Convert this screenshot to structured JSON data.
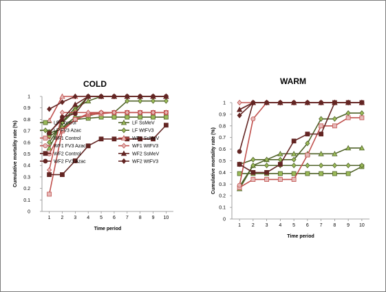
{
  "styles": {
    "LF": {
      "color": "#4f6228",
      "fill": "#9bbb59"
    },
    "WF1": {
      "color": "#c0504d",
      "fill": "#e6b9b8"
    },
    "WF2": {
      "color": "#632523",
      "fill": "#632523"
    }
  },
  "chart_data": [
    {
      "type": "line",
      "title": "COLD",
      "xlabel": "Time period",
      "ylabel": "Cumulative mortality rate (%)",
      "x": [
        1,
        2,
        3,
        4,
        5,
        6,
        7,
        8,
        9,
        10
      ],
      "ylim": [
        0,
        1
      ],
      "yticks": [
        0,
        0.1,
        0.2,
        0.3,
        0.4,
        0.5,
        0.6,
        0.7,
        0.8,
        0.9,
        1
      ],
      "ytick_labels": [
        "0",
        "0.1",
        "0.2",
        "0.3",
        "0.4",
        "0.5",
        "0.6",
        "0.7",
        "0.8",
        "0.9",
        "1"
      ],
      "legend": "inside-bottom-two-columns",
      "series": [
        {
          "name": "LF Control",
          "group": "LF",
          "marker": "square",
          "values": [
            0.68,
            0.72,
            0.8,
            0.81,
            0.82,
            0.82,
            0.82,
            0.82,
            0.82,
            0.82
          ]
        },
        {
          "name": "LF SsMeV",
          "group": "LF",
          "marker": "triangle",
          "values": [
            0.55,
            0.78,
            0.9,
            0.96,
            1.0,
            1.0,
            1.0,
            1.0,
            1.0,
            1.0
          ]
        },
        {
          "name": "LF FV3 Azac",
          "group": "LF",
          "marker": "diamond",
          "values": [
            0.6,
            0.77,
            0.88,
            1.0,
            1.0,
            1.0,
            1.0,
            1.0,
            1.0,
            1.0
          ]
        },
        {
          "name": "LF WtFV3",
          "group": "LF",
          "marker": "diamond",
          "values": [
            0.65,
            0.73,
            0.82,
            0.83,
            0.86,
            0.86,
            0.96,
            0.96,
            0.96,
            0.96
          ]
        },
        {
          "name": "WF1 Control",
          "group": "WF1",
          "marker": "square",
          "values": [
            0.15,
            0.7,
            0.8,
            0.84,
            0.85,
            0.86,
            0.86,
            0.86,
            0.86,
            0.86
          ]
        },
        {
          "name": "WF1 SsMeV",
          "group": "WF1",
          "marker": "triangle",
          "values": [
            0.79,
            1.0,
            1.0,
            1.0,
            1.0,
            1.0,
            1.0,
            1.0,
            1.0,
            1.0
          ]
        },
        {
          "name": "WF1 FV3 Azac",
          "group": "WF1",
          "marker": "circle",
          "values": [
            0.5,
            0.71,
            0.8,
            0.85,
            0.86,
            0.86,
            0.86,
            0.86,
            0.86,
            0.86
          ]
        },
        {
          "name": "WF1 WtFV3",
          "group": "WF1",
          "marker": "diamond",
          "values": [
            0.36,
            0.86,
            0.86,
            0.86,
            0.86,
            0.86,
            0.86,
            0.86,
            0.86,
            0.86
          ]
        },
        {
          "name": "WF2 Control",
          "group": "WF2",
          "marker": "square",
          "values": [
            0.32,
            0.32,
            0.44,
            0.57,
            0.63,
            0.63,
            0.63,
            0.63,
            0.63,
            0.75
          ]
        },
        {
          "name": "WF2 SsMeV",
          "group": "WF2",
          "marker": "triangle",
          "values": [
            0.69,
            0.8,
            0.93,
            1.0,
            1.0,
            1.0,
            1.0,
            1.0,
            1.0,
            1.0
          ]
        },
        {
          "name": "WF2 FV3 Azac",
          "group": "WF2",
          "marker": "circle",
          "values": [
            0.68,
            0.82,
            0.85,
            1.0,
            1.0,
            1.0,
            1.0,
            1.0,
            1.0,
            1.0
          ]
        },
        {
          "name": "WF2 WtFV3",
          "group": "WF2",
          "marker": "diamond",
          "values": [
            0.89,
            0.95,
            1.0,
            1.0,
            1.0,
            1.0,
            1.0,
            1.0,
            1.0,
            1.0
          ]
        }
      ]
    },
    {
      "type": "line",
      "title": "WARM",
      "xlabel": "Time period",
      "ylabel": "Cumulative mortality rate (%)",
      "x": [
        1,
        2,
        3,
        4,
        5,
        6,
        7,
        8,
        9,
        10
      ],
      "ylim": [
        0,
        1
      ],
      "yticks": [
        0,
        0.1,
        0.2,
        0.3,
        0.4,
        0.5,
        0.6,
        0.7,
        0.8,
        0.9,
        1
      ],
      "ytick_labels": [
        "0",
        "0.1",
        "0.2",
        "0.3",
        "0.4",
        "0.5",
        "0.6",
        "0.7",
        "0.8",
        "0.9",
        "1"
      ],
      "legend": "none",
      "series": [
        {
          "name": "LF Control",
          "group": "LF",
          "marker": "square",
          "values": [
            0.39,
            0.39,
            0.39,
            0.39,
            0.39,
            0.39,
            0.39,
            0.39,
            0.39,
            0.45
          ]
        },
        {
          "name": "LF SsMeV",
          "group": "LF",
          "marker": "triangle",
          "values": [
            0.26,
            0.46,
            0.51,
            0.56,
            0.56,
            0.56,
            0.56,
            0.56,
            0.61,
            0.61
          ]
        },
        {
          "name": "LF FV3 Azac",
          "group": "LF",
          "marker": "diamond",
          "values": [
            0.28,
            0.46,
            0.46,
            0.46,
            0.46,
            0.46,
            0.46,
            0.46,
            0.46,
            0.46
          ]
        },
        {
          "name": "LF WtFV3",
          "group": "LF",
          "marker": "diamond",
          "values": [
            0.47,
            0.51,
            0.51,
            0.51,
            0.51,
            0.65,
            0.86,
            0.86,
            0.91,
            0.91
          ]
        },
        {
          "name": "WF1 Control",
          "group": "WF1",
          "marker": "square",
          "values": [
            0.27,
            0.34,
            0.34,
            0.34,
            0.34,
            0.55,
            0.8,
            0.8,
            0.87,
            0.87
          ]
        },
        {
          "name": "WF1 SsMeV",
          "group": "WF1",
          "marker": "triangle",
          "values": [
            0.94,
            1.0,
            1.0,
            1.0,
            1.0,
            1.0,
            1.0,
            1.0,
            1.0,
            1.0
          ]
        },
        {
          "name": "WF1 FV3 Azac",
          "group": "WF1",
          "marker": "circle",
          "values": [
            0.29,
            0.86,
            1.0,
            1.0,
            1.0,
            1.0,
            1.0,
            1.0,
            1.0,
            1.0
          ]
        },
        {
          "name": "WF1 WtFV3",
          "group": "WF1",
          "marker": "diamond",
          "values": [
            1.0,
            1.0,
            1.0,
            1.0,
            1.0,
            1.0,
            1.0,
            1.0,
            1.0,
            1.0
          ]
        },
        {
          "name": "WF2 Control",
          "group": "WF2",
          "marker": "square",
          "values": [
            0.47,
            0.4,
            0.4,
            0.47,
            0.67,
            0.73,
            0.73,
            1.0,
            1.0,
            1.0
          ]
        },
        {
          "name": "WF2 SsMeV",
          "group": "WF2",
          "marker": "triangle",
          "values": [
            0.94,
            1.0,
            1.0,
            1.0,
            1.0,
            1.0,
            1.0,
            1.0,
            1.0,
            1.0
          ]
        },
        {
          "name": "WF2 FV3 Azac",
          "group": "WF2",
          "marker": "circle",
          "values": [
            0.58,
            1.0,
            1.0,
            1.0,
            1.0,
            1.0,
            1.0,
            1.0,
            1.0,
            1.0
          ]
        },
        {
          "name": "WF2 WtFV3",
          "group": "WF2",
          "marker": "diamond",
          "values": [
            0.89,
            1.0,
            1.0,
            1.0,
            1.0,
            1.0,
            1.0,
            1.0,
            1.0,
            1.0
          ]
        }
      ]
    }
  ]
}
